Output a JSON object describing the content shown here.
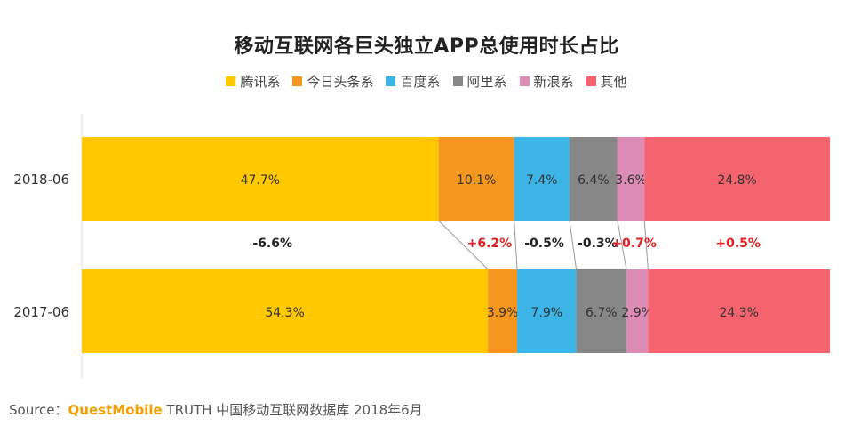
{
  "title": "移动互联网各巨头独立APP总使用时长占比",
  "source": {
    "prefix": "Source：",
    "brand": "QuestMobile",
    "rest": "TRUTH 中国移动互联网数据库 2018年6月"
  },
  "colors": {
    "change_negative": "#222222",
    "change_positive": "#e02020"
  },
  "chart_data": {
    "type": "bar",
    "orientation": "horizontal",
    "stacked": true,
    "percent_stacked": true,
    "categories": [
      "2018-06",
      "2017-06"
    ],
    "series": [
      {
        "name": "腾讯系",
        "color": "#ffc800",
        "values": [
          47.7,
          54.3
        ],
        "labels": [
          "47.7%",
          "54.3%"
        ]
      },
      {
        "name": "今日头条系",
        "color": "#f5961e",
        "values": [
          10.1,
          3.9
        ],
        "labels": [
          "10.1%",
          "3.9%"
        ]
      },
      {
        "name": "百度系",
        "color": "#3cb4e6",
        "values": [
          7.4,
          7.9
        ],
        "labels": [
          "7.4%",
          "7.9%"
        ]
      },
      {
        "name": "阿里系",
        "color": "#878787",
        "values": [
          6.4,
          6.7
        ],
        "labels": [
          "6.4%",
          "6.7%"
        ]
      },
      {
        "name": "新浪系",
        "color": "#dc8cb4",
        "values": [
          3.6,
          2.9
        ],
        "labels": [
          "3.6%",
          "2.9%"
        ]
      },
      {
        "name": "其他",
        "color": "#f5646e",
        "values": [
          24.8,
          24.3
        ],
        "labels": [
          "24.8%",
          "24.3%"
        ]
      }
    ],
    "changes": [
      "-6.6%",
      "+6.2%",
      "-0.5%",
      "-0.3%",
      "+0.7%",
      "+0.5%"
    ],
    "xlim": [
      0,
      100
    ],
    "grid": false,
    "legend_position": "top"
  }
}
